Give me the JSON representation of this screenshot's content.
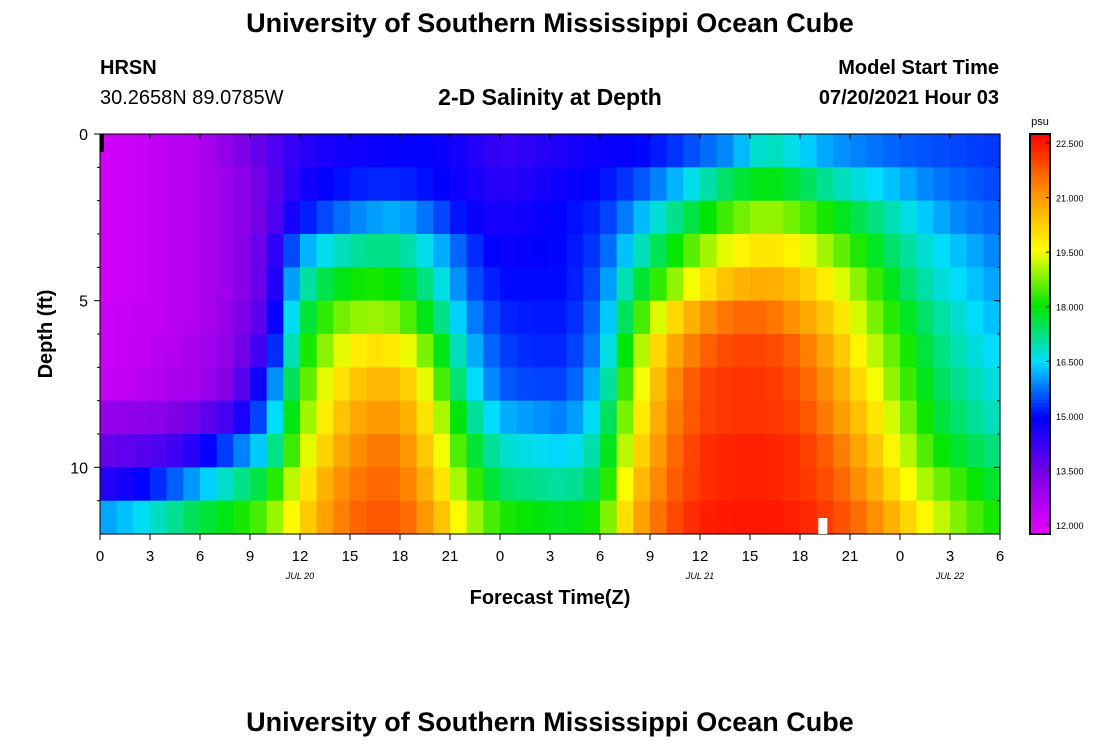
{
  "header": {
    "title": "University of Southern Mississippi Ocean Cube",
    "station": "HRSN",
    "coordinates": "30.2658N  89.0785W",
    "subtitle": "2-D Salinity at Depth",
    "model_start_label": "Model Start Time",
    "model_start_value": "07/20/2021 Hour 03"
  },
  "footer": {
    "title": "University of Southern Mississippi Ocean Cube"
  },
  "chart_data": {
    "type": "heatmap",
    "title": "2-D Salinity at Depth",
    "xlabel": "Forecast Time(Z)",
    "ylabel": "Depth (ft)",
    "x_tick_labels": [
      "0",
      "3",
      "6",
      "9",
      "12",
      "15",
      "18",
      "21",
      "0",
      "3",
      "6",
      "9",
      "12",
      "15",
      "18",
      "21",
      "0",
      "3",
      "6"
    ],
    "x_tick_hours": [
      0,
      3,
      6,
      9,
      12,
      15,
      18,
      21,
      24,
      27,
      30,
      33,
      36,
      39,
      42,
      45,
      48,
      51,
      54
    ],
    "date_labels": [
      {
        "label": "JUL 20",
        "hour": 12
      },
      {
        "label": "JUL 21",
        "hour": 36
      },
      {
        "label": "JUL 22",
        "hour": 51
      }
    ],
    "x_range_hours": [
      0,
      54
    ],
    "y_tick_labels": [
      "0",
      "5",
      "10"
    ],
    "y_tick_values": [
      0,
      5,
      10
    ],
    "y_minor_ticks": [
      1,
      2,
      3,
      4,
      6,
      7,
      8,
      9,
      11
    ],
    "y_range_ft": [
      0,
      12
    ],
    "colorbar": {
      "unit": "psu",
      "min": 11.75,
      "max": 22.75,
      "ticks": [
        "12.000",
        "13.500",
        "15.000",
        "16.500",
        "18.000",
        "19.500",
        "21.000",
        "22.500"
      ],
      "tick_values": [
        12.0,
        13.5,
        15.0,
        16.5,
        18.0,
        19.5,
        21.0,
        22.5
      ]
    },
    "depth_layers_ft": [
      0,
      1,
      2,
      3,
      4,
      5,
      6,
      7,
      8,
      9,
      10,
      11
    ],
    "time_hours": [
      0,
      2,
      4,
      6,
      8,
      10,
      12,
      14,
      16,
      18,
      20,
      22,
      24,
      26,
      28,
      30,
      32,
      34,
      36,
      38,
      40,
      42,
      44,
      46,
      48,
      50,
      52,
      54
    ],
    "salinity_psu": [
      [
        12.1,
        12.2,
        12.4,
        12.6,
        13.2,
        13.8,
        14.4,
        14.7,
        14.8,
        14.9,
        14.9,
        14.6,
        14.2,
        14.4,
        14.6,
        14.8,
        14.9,
        15.2,
        15.6,
        16.0,
        17.0,
        16.5,
        16.0,
        15.8,
        15.6,
        15.5,
        15.4,
        15.3
      ],
      [
        12.1,
        12.2,
        12.4,
        12.6,
        13.0,
        13.6,
        14.6,
        15.0,
        15.2,
        15.2,
        15.0,
        14.7,
        14.4,
        14.6,
        14.8,
        15.0,
        15.4,
        16.0,
        16.8,
        17.6,
        18.0,
        17.6,
        17.0,
        16.6,
        16.2,
        15.8,
        15.6,
        15.4
      ],
      [
        12.1,
        12.2,
        12.4,
        12.6,
        13.0,
        13.6,
        15.0,
        15.6,
        16.0,
        16.2,
        15.6,
        14.9,
        14.6,
        14.8,
        15.0,
        15.2,
        16.0,
        17.0,
        17.8,
        18.6,
        19.0,
        18.6,
        18.0,
        17.4,
        16.8,
        16.2,
        15.8,
        15.6
      ],
      [
        12.1,
        12.2,
        12.4,
        12.6,
        13.0,
        13.8,
        16.0,
        16.8,
        17.2,
        17.2,
        16.4,
        15.4,
        14.8,
        14.9,
        15.0,
        15.4,
        16.6,
        17.8,
        18.8,
        19.6,
        20.0,
        19.6,
        18.8,
        18.0,
        17.2,
        16.6,
        16.2,
        15.8
      ],
      [
        12.1,
        12.2,
        12.4,
        12.6,
        13.0,
        13.8,
        16.8,
        17.8,
        18.2,
        18.0,
        17.0,
        15.6,
        15.0,
        15.0,
        15.0,
        15.6,
        17.4,
        18.6,
        19.8,
        20.6,
        20.8,
        20.4,
        19.6,
        18.6,
        17.6,
        16.8,
        16.4,
        16.0
      ],
      [
        12.2,
        12.3,
        12.4,
        12.6,
        13.1,
        14.0,
        17.4,
        18.6,
        19.0,
        18.8,
        17.6,
        16.0,
        15.2,
        15.1,
        15.1,
        15.8,
        18.0,
        19.8,
        21.0,
        21.6,
        21.6,
        21.0,
        20.2,
        19.0,
        18.0,
        17.2,
        16.6,
        16.2
      ],
      [
        12.2,
        12.3,
        12.5,
        12.7,
        13.2,
        14.4,
        17.8,
        19.2,
        20.0,
        19.8,
        18.4,
        16.4,
        15.4,
        15.2,
        15.2,
        16.0,
        18.6,
        20.6,
        21.6,
        22.0,
        22.0,
        21.6,
        20.6,
        19.4,
        18.4,
        17.4,
        16.8,
        16.4
      ],
      [
        12.3,
        12.4,
        12.6,
        12.8,
        13.4,
        15.2,
        18.2,
        19.8,
        20.6,
        20.6,
        19.0,
        16.8,
        15.6,
        15.4,
        15.4,
        16.4,
        19.0,
        21.0,
        22.0,
        22.2,
        22.2,
        21.8,
        21.0,
        19.8,
        18.6,
        17.6,
        17.0,
        16.6
      ],
      [
        13.0,
        13.1,
        13.2,
        13.6,
        14.2,
        15.8,
        18.6,
        20.2,
        21.0,
        21.0,
        19.6,
        17.4,
        16.2,
        16.0,
        15.8,
        16.8,
        19.4,
        21.2,
        22.0,
        22.2,
        22.2,
        22.0,
        21.2,
        20.2,
        19.0,
        17.8,
        17.2,
        16.8
      ],
      [
        13.6,
        13.8,
        14.0,
        14.6,
        15.6,
        16.6,
        19.0,
        20.6,
        21.4,
        21.4,
        20.0,
        18.0,
        16.8,
        16.6,
        16.4,
        17.2,
        19.8,
        21.4,
        22.2,
        22.4,
        22.4,
        22.2,
        21.6,
        20.6,
        19.4,
        18.2,
        17.6,
        17.2
      ],
      [
        14.4,
        14.8,
        15.4,
        16.2,
        17.0,
        17.8,
        19.6,
        21.0,
        21.6,
        21.6,
        20.4,
        18.6,
        17.4,
        17.2,
        17.0,
        17.6,
        20.2,
        21.6,
        22.2,
        22.4,
        22.4,
        22.2,
        21.8,
        21.0,
        19.8,
        18.8,
        18.2,
        17.6
      ],
      [
        16.0,
        16.4,
        17.0,
        17.6,
        18.0,
        18.6,
        20.0,
        21.2,
        21.8,
        21.8,
        20.8,
        19.2,
        18.2,
        18.0,
        17.8,
        18.2,
        20.6,
        21.8,
        22.4,
        22.5,
        22.5,
        22.4,
        22.0,
        21.4,
        20.4,
        19.4,
        18.6,
        18.0
      ]
    ]
  }
}
